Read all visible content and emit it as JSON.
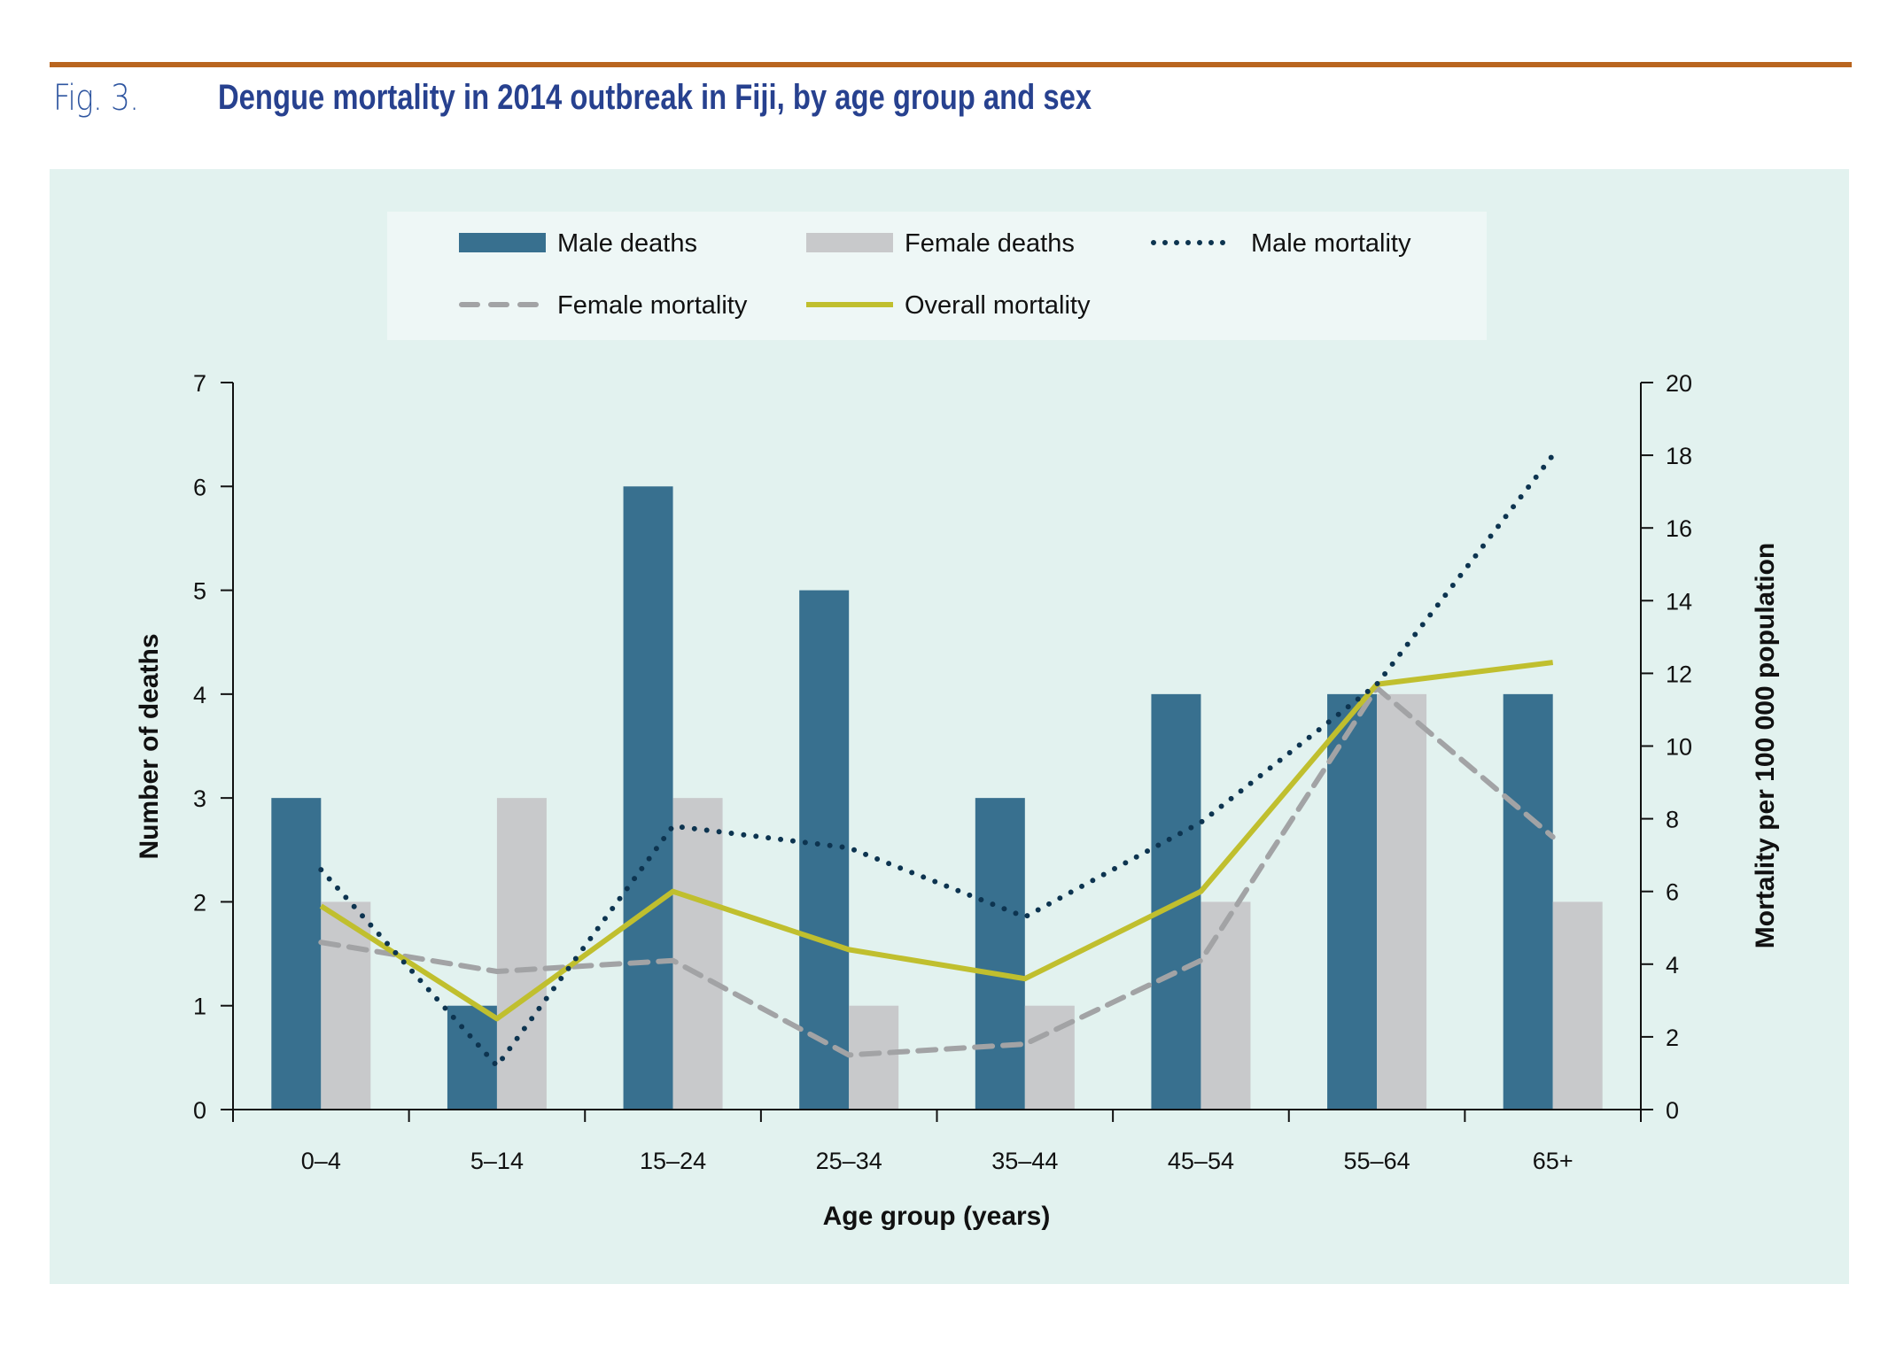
{
  "figure": {
    "number": "Fig. 3.",
    "title": "Dengue mortality in 2014 outbreak in Fiji, by age group and sex"
  },
  "colors": {
    "rule": "#b9651f",
    "title": "#27418f",
    "panel_bg": "#e2f2ef",
    "legend_bg": "#eef7f6",
    "male_bar": "#38708f",
    "female_bar": "#c8c9cb",
    "male_line": "#0d3450",
    "female_line": "#a2a3a5",
    "overall_line": "#c0bf2e"
  },
  "chart_data": {
    "type": "bar",
    "title": "Dengue mortality in 2014 outbreak in Fiji, by age group and sex",
    "xlabel": "Age group (years)",
    "ylabel": "Number of deaths",
    "y2label": "Mortality per 100 000 population",
    "categories": [
      "0–4",
      "5–14",
      "15–24",
      "25–34",
      "35–44",
      "45–54",
      "55–64",
      "65+"
    ],
    "ylim": [
      0,
      7
    ],
    "yticks": [
      0,
      1,
      2,
      3,
      4,
      5,
      6,
      7
    ],
    "y2lim": [
      0,
      20
    ],
    "y2ticks": [
      0,
      2,
      4,
      6,
      8,
      10,
      12,
      14,
      16,
      18,
      20
    ],
    "grid": false,
    "legend_position": "top-center",
    "series": [
      {
        "name": "Male deaths",
        "kind": "bar",
        "axis": "left",
        "values": [
          3,
          1,
          6,
          5,
          3,
          4,
          4,
          4
        ]
      },
      {
        "name": "Female deaths",
        "kind": "bar",
        "axis": "left",
        "values": [
          2,
          3,
          3,
          1,
          1,
          2,
          4,
          2
        ]
      },
      {
        "name": "Male mortality",
        "kind": "line",
        "style": "dotted",
        "axis": "right",
        "values": [
          6.6,
          1.2,
          7.8,
          7.2,
          5.3,
          7.9,
          11.7,
          18.0
        ]
      },
      {
        "name": "Female mortality",
        "kind": "line",
        "style": "dashed",
        "axis": "right",
        "values": [
          4.6,
          3.8,
          4.1,
          1.5,
          1.8,
          4.1,
          11.6,
          7.5
        ]
      },
      {
        "name": "Overall mortality",
        "kind": "line",
        "style": "solid",
        "axis": "right",
        "values": [
          5.6,
          2.5,
          6.0,
          4.4,
          3.6,
          6.0,
          11.7,
          12.3
        ]
      }
    ]
  },
  "legend": {
    "items": [
      {
        "label": "Male deaths",
        "type": "bar"
      },
      {
        "label": "Female deaths",
        "type": "bar"
      },
      {
        "label": "Male mortality",
        "type": "dotted"
      },
      {
        "label": "Female mortality",
        "type": "dashed"
      },
      {
        "label": "Overall mortality",
        "type": "solid"
      }
    ]
  }
}
